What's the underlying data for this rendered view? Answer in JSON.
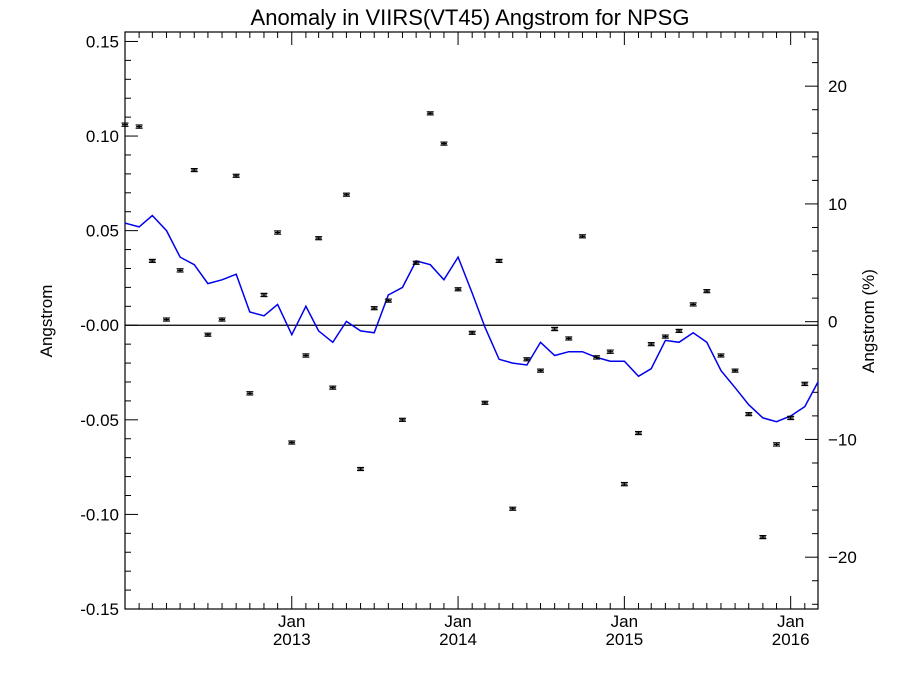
{
  "chart_data": {
    "type": "scatter",
    "title": "Anomaly in VIIRS(VT45) Angstrom for NPSG",
    "ylabel": "Angstrom",
    "y2label": "Angstrom (%)",
    "ylim": [
      -0.15,
      0.155
    ],
    "y2lim": [
      -24.4,
      24.6
    ],
    "y_ticks": [
      {
        "value": 0.15,
        "label": "0.15"
      },
      {
        "value": 0.1,
        "label": "0.10"
      },
      {
        "value": 0.05,
        "label": "0.05"
      },
      {
        "value": 0.0,
        "label": "-0.00"
      },
      {
        "value": -0.05,
        "label": "-0.05"
      },
      {
        "value": -0.1,
        "label": "-0.10"
      },
      {
        "value": -0.15,
        "label": "-0.15"
      }
    ],
    "y2_ticks": [
      {
        "value": 20,
        "label": "20"
      },
      {
        "value": 10,
        "label": "10"
      },
      {
        "value": 0,
        "label": "0"
      },
      {
        "value": -10,
        "label": "-10"
      },
      {
        "value": -20,
        "label": "-20"
      }
    ],
    "xlim": [
      "2012-01-01",
      "2016-03-01"
    ],
    "x_ticks": [
      {
        "date": "2013-01-01",
        "month": "Jan",
        "year": "2013"
      },
      {
        "date": "2014-01-01",
        "month": "Jan",
        "year": "2014"
      },
      {
        "date": "2015-01-01",
        "month": "Jan",
        "year": "2015"
      },
      {
        "date": "2016-01-01",
        "month": "Jan",
        "year": "2016"
      }
    ],
    "reference_line": 0,
    "grid": false,
    "series": [
      {
        "kind": "points_with_error_bars",
        "color": "#000000",
        "x": [
          "2012-01-01",
          "2012-02-01",
          "2012-03-01",
          "2012-04-01",
          "2012-05-01",
          "2012-06-01",
          "2012-07-01",
          "2012-08-01",
          "2012-09-01",
          "2012-10-01",
          "2012-11-01",
          "2012-12-01",
          "2013-01-01",
          "2013-02-01",
          "2013-03-01",
          "2013-04-01",
          "2013-05-01",
          "2013-06-01",
          "2013-07-01",
          "2013-08-01",
          "2013-09-01",
          "2013-10-01",
          "2013-11-01",
          "2013-12-01",
          "2014-01-01",
          "2014-02-01",
          "2014-03-01",
          "2014-04-01",
          "2014-05-01",
          "2014-06-01",
          "2014-07-01",
          "2014-08-01",
          "2014-09-01",
          "2014-10-01",
          "2014-11-01",
          "2014-12-01",
          "2015-01-01",
          "2015-02-01",
          "2015-03-01",
          "2015-04-01",
          "2015-05-01",
          "2015-06-01",
          "2015-07-01",
          "2015-08-01",
          "2015-09-01",
          "2015-10-01",
          "2015-11-01",
          "2015-12-01",
          "2016-01-01",
          "2016-02-01"
        ],
        "y": [
          0.106,
          0.105,
          0.034,
          0.003,
          0.029,
          0.082,
          -0.005,
          0.003,
          0.079,
          -0.036,
          0.016,
          0.049,
          -0.062,
          -0.016,
          0.046,
          -0.033,
          0.069,
          -0.076,
          0.009,
          0.013,
          -0.05,
          0.033,
          0.112,
          0.096,
          0.019,
          -0.004,
          -0.041,
          0.034,
          -0.097,
          -0.018,
          -0.024,
          -0.002,
          -0.007,
          0.047,
          -0.017,
          -0.014,
          -0.084,
          -0.057,
          -0.01,
          -0.006,
          -0.003,
          0.011,
          0.018,
          -0.016,
          -0.024,
          -0.047,
          -0.112,
          -0.063,
          -0.049,
          -0.031
        ],
        "error": [
          0.0007,
          0.0007,
          0.0008,
          0.0008,
          0.0007,
          0.0008,
          0.0008,
          0.0008,
          0.0008,
          0.0007,
          0.0007,
          0.0007,
          0.0008,
          0.0007,
          0.0008,
          0.0008,
          0.0008,
          0.0008,
          0.0008,
          0.0008,
          0.0008,
          0.0008,
          0.0008,
          0.0008,
          0.0008,
          0.0008,
          0.0008,
          0.0008,
          0.0008,
          0.0008,
          0.0008,
          0.0007,
          0.0008,
          0.0008,
          0.0007,
          0.0007,
          0.0007,
          0.0008,
          0.0008,
          0.0008,
          0.0008,
          0.0008,
          0.0008,
          0.0008,
          0.0008,
          0.0008,
          0.0008,
          0.0007,
          0.0007,
          0.0007
        ]
      },
      {
        "kind": "running_mean_line",
        "color": "#0000ee",
        "x": [
          "2012-01-01",
          "2012-02-01",
          "2012-03-01",
          "2012-04-01",
          "2012-05-01",
          "2012-06-01",
          "2012-07-01",
          "2012-08-01",
          "2012-09-01",
          "2012-10-01",
          "2012-11-01",
          "2012-12-01",
          "2013-01-01",
          "2013-02-01",
          "2013-03-01",
          "2013-04-01",
          "2013-05-01",
          "2013-06-01",
          "2013-07-01",
          "2013-08-01",
          "2013-09-01",
          "2013-10-01",
          "2013-11-01",
          "2013-12-01",
          "2014-01-01",
          "2014-02-01",
          "2014-03-01",
          "2014-04-01",
          "2014-05-01",
          "2014-06-01",
          "2014-07-01",
          "2014-08-01",
          "2014-09-01",
          "2014-10-01",
          "2014-11-01",
          "2014-12-01",
          "2015-01-01",
          "2015-02-01",
          "2015-03-01",
          "2015-04-01",
          "2015-05-01",
          "2015-06-01",
          "2015-07-01",
          "2015-08-01",
          "2015-09-01",
          "2015-10-01",
          "2015-11-01",
          "2015-12-01",
          "2016-01-01",
          "2016-02-01",
          "2016-03-01"
        ],
        "y": [
          0.054,
          0.052,
          0.058,
          0.05,
          0.036,
          0.032,
          0.022,
          0.024,
          0.027,
          0.007,
          0.005,
          0.011,
          -0.005,
          0.01,
          -0.003,
          -0.009,
          0.002,
          -0.003,
          -0.004,
          0.016,
          0.02,
          0.034,
          0.032,
          0.024,
          0.036,
          0.017,
          -0.001,
          -0.018,
          -0.02,
          -0.021,
          -0.009,
          -0.016,
          -0.014,
          -0.014,
          -0.017,
          -0.019,
          -0.019,
          -0.027,
          -0.023,
          -0.008,
          -0.009,
          -0.004,
          -0.009,
          -0.024,
          -0.033,
          -0.042,
          -0.049,
          -0.051,
          -0.048,
          -0.043,
          -0.03
        ]
      }
    ]
  }
}
